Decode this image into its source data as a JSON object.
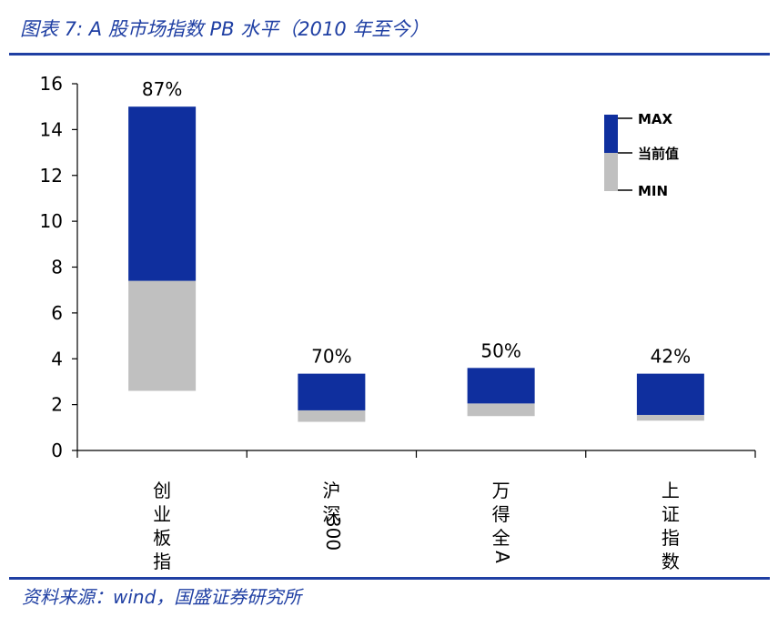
{
  "header": {
    "title": "图表 7: A 股市场指数 PB 水平（2010 年至今）"
  },
  "footer": {
    "source": "资料来源：wind，国盛证券研究所"
  },
  "colors": {
    "accent": "#1f3fa3",
    "upper_bar": "#0f2f9e",
    "lower_bar": "#c0c0c0"
  },
  "chart_data": {
    "type": "bar",
    "subtype": "floating-stacked",
    "categories": [
      "创业板指",
      "沪深300",
      "万得全A",
      "上证指数"
    ],
    "series": [
      {
        "name": "MAX",
        "values": [
          15.0,
          3.35,
          3.6,
          3.35
        ]
      },
      {
        "name": "当前值",
        "values": [
          7.4,
          1.75,
          2.05,
          1.55
        ]
      },
      {
        "name": "MIN",
        "values": [
          2.6,
          1.25,
          1.5,
          1.3
        ]
      }
    ],
    "percentile_labels": [
      "87%",
      "70%",
      "50%",
      "42%"
    ],
    "yticks": [
      "0",
      "2",
      "4",
      "6",
      "8",
      "10",
      "12",
      "14",
      "16"
    ],
    "ylim": [
      0,
      16
    ],
    "legend": {
      "position": "top-right",
      "items": [
        "MAX",
        "当前值",
        "MIN"
      ]
    },
    "grid": false
  }
}
